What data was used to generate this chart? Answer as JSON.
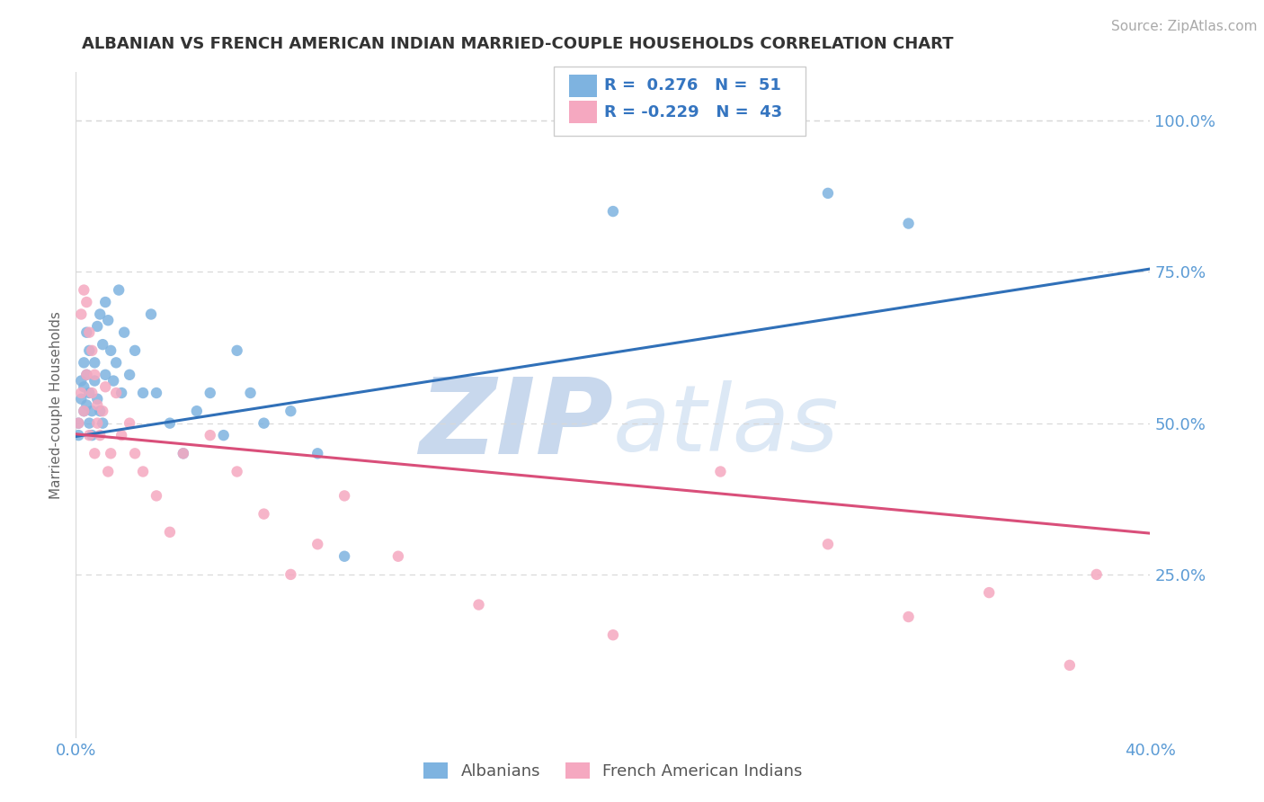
{
  "title": "ALBANIAN VS FRENCH AMERICAN INDIAN MARRIED-COUPLE HOUSEHOLDS CORRELATION CHART",
  "source": "Source: ZipAtlas.com",
  "ylabel": "Married-couple Households",
  "xlim": [
    0.0,
    0.4
  ],
  "ylim": [
    -0.02,
    1.08
  ],
  "yticks": [
    0.25,
    0.5,
    0.75,
    1.0
  ],
  "ytick_labels": [
    "25.0%",
    "50.0%",
    "75.0%",
    "100.0%"
  ],
  "blue_color": "#7eb3e0",
  "pink_color": "#f5a8c0",
  "blue_line_color": "#3070b8",
  "pink_line_color": "#d94f7a",
  "legend_text_color": "#3575c0",
  "axis_tick_color": "#5b9bd5",
  "title_color": "#333333",
  "watermark_color": "#dce8f5",
  "background_color": "#ffffff",
  "grid_color": "#d8d8d8",
  "source_color": "#aaaaaa",
  "blue_trend_x": [
    0.0,
    0.4
  ],
  "blue_trend_y": [
    0.478,
    0.755
  ],
  "pink_trend_x": [
    0.0,
    0.4
  ],
  "pink_trend_y": [
    0.482,
    0.318
  ],
  "blue_dots_x": [
    0.001,
    0.001,
    0.002,
    0.002,
    0.003,
    0.003,
    0.003,
    0.004,
    0.004,
    0.004,
    0.005,
    0.005,
    0.005,
    0.006,
    0.006,
    0.007,
    0.007,
    0.008,
    0.008,
    0.009,
    0.009,
    0.01,
    0.01,
    0.011,
    0.011,
    0.012,
    0.013,
    0.014,
    0.015,
    0.016,
    0.017,
    0.018,
    0.02,
    0.022,
    0.025,
    0.028,
    0.03,
    0.035,
    0.04,
    0.045,
    0.05,
    0.055,
    0.06,
    0.065,
    0.07,
    0.08,
    0.09,
    0.1,
    0.2,
    0.28,
    0.31
  ],
  "blue_dots_y": [
    0.5,
    0.48,
    0.54,
    0.57,
    0.52,
    0.56,
    0.6,
    0.58,
    0.53,
    0.65,
    0.5,
    0.55,
    0.62,
    0.52,
    0.48,
    0.6,
    0.57,
    0.54,
    0.66,
    0.52,
    0.68,
    0.63,
    0.5,
    0.7,
    0.58,
    0.67,
    0.62,
    0.57,
    0.6,
    0.72,
    0.55,
    0.65,
    0.58,
    0.62,
    0.55,
    0.68,
    0.55,
    0.5,
    0.45,
    0.52,
    0.55,
    0.48,
    0.62,
    0.55,
    0.5,
    0.52,
    0.45,
    0.28,
    0.85,
    0.88,
    0.83
  ],
  "pink_dots_x": [
    0.001,
    0.002,
    0.002,
    0.003,
    0.003,
    0.004,
    0.004,
    0.005,
    0.005,
    0.006,
    0.006,
    0.007,
    0.007,
    0.008,
    0.008,
    0.009,
    0.01,
    0.011,
    0.012,
    0.013,
    0.015,
    0.017,
    0.02,
    0.022,
    0.025,
    0.03,
    0.035,
    0.04,
    0.05,
    0.06,
    0.07,
    0.08,
    0.09,
    0.1,
    0.12,
    0.15,
    0.2,
    0.24,
    0.28,
    0.31,
    0.34,
    0.37,
    0.38
  ],
  "pink_dots_y": [
    0.5,
    0.55,
    0.68,
    0.52,
    0.72,
    0.58,
    0.7,
    0.65,
    0.48,
    0.55,
    0.62,
    0.45,
    0.58,
    0.5,
    0.53,
    0.48,
    0.52,
    0.56,
    0.42,
    0.45,
    0.55,
    0.48,
    0.5,
    0.45,
    0.42,
    0.38,
    0.32,
    0.45,
    0.48,
    0.42,
    0.35,
    0.25,
    0.3,
    0.38,
    0.28,
    0.2,
    0.15,
    0.42,
    0.3,
    0.18,
    0.22,
    0.1,
    0.25
  ]
}
